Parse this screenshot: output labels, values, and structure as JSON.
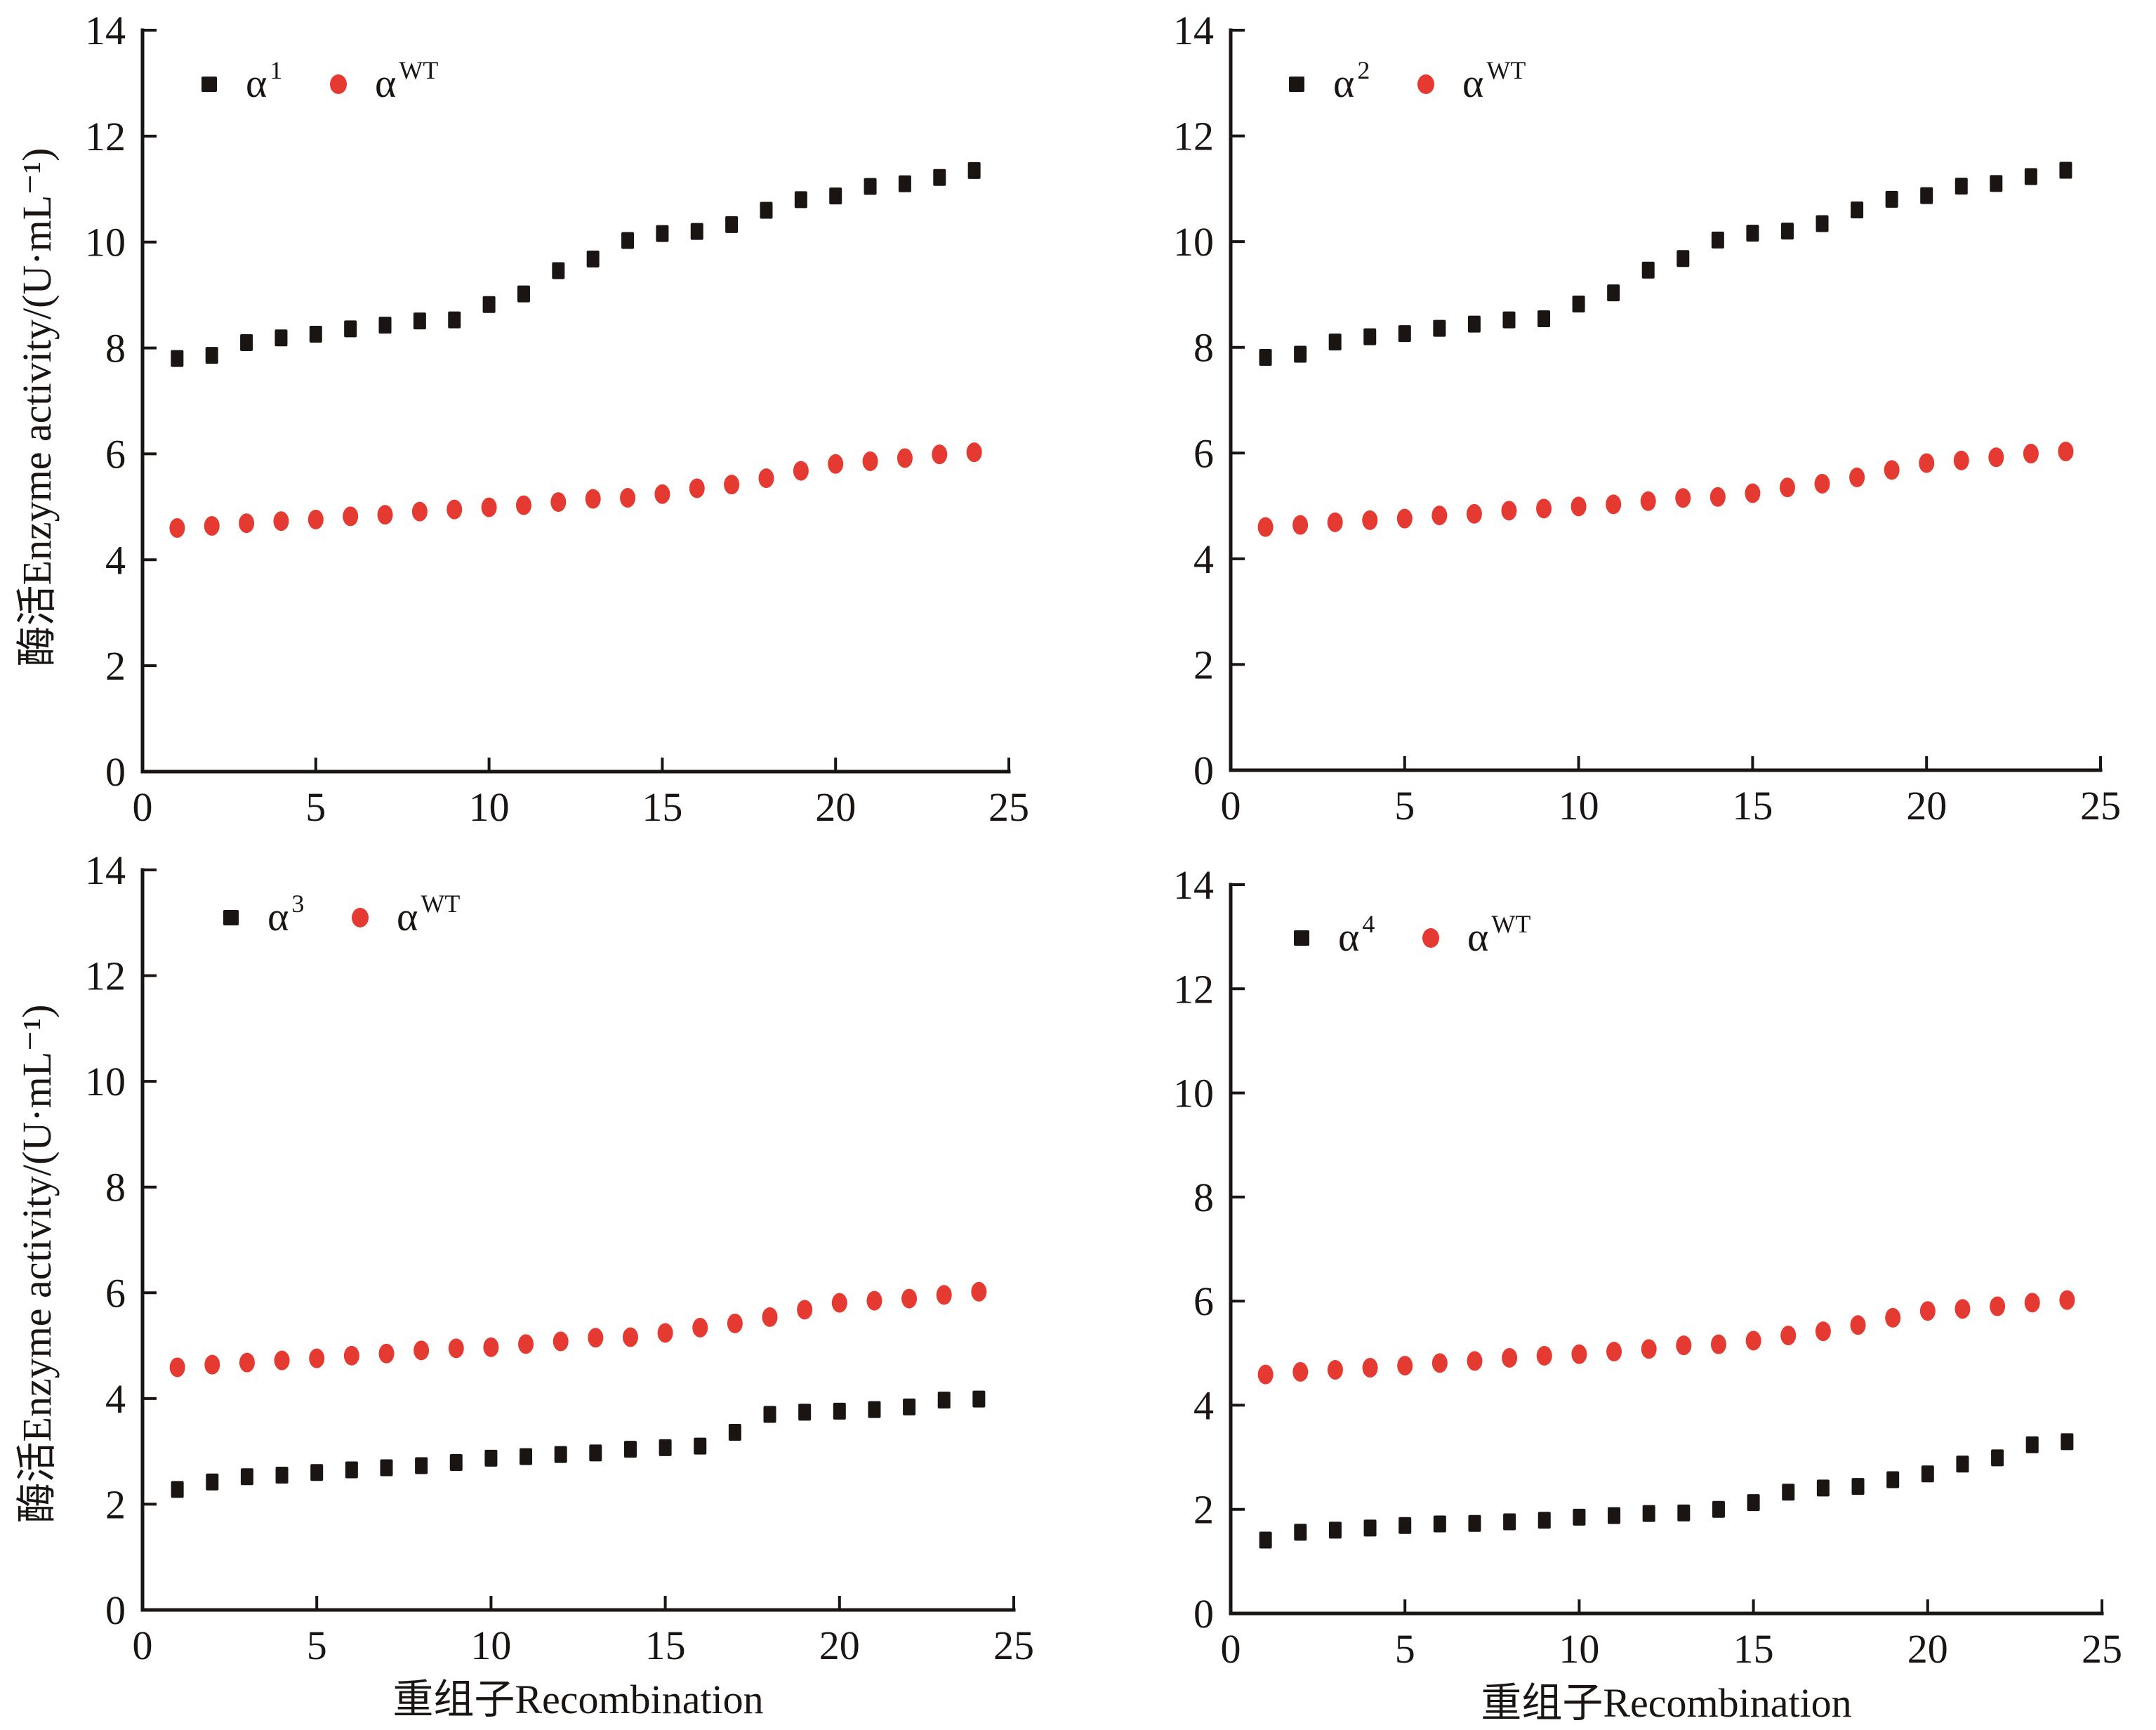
{
  "figure": {
    "colors": {
      "mutant": "#1a1512",
      "wild_type": "#e53a32",
      "axis": "#1a1512"
    }
  },
  "chart_data": [
    {
      "type": "scatter",
      "panel": "top-left",
      "title": "",
      "xlabel": "",
      "ylabel": "酶活Enzyme activity/(U·mL⁻¹)",
      "xlim": [
        0,
        25
      ],
      "ylim": [
        0,
        14
      ],
      "xticks": [
        0,
        5,
        10,
        15,
        20,
        25
      ],
      "yticks": [
        0,
        2,
        4,
        6,
        8,
        10,
        12,
        14
      ],
      "grid": false,
      "legend_position": "top-left",
      "x": [
        1,
        2,
        3,
        4,
        5,
        6,
        7,
        8,
        9,
        10,
        11,
        12,
        13,
        14,
        15,
        16,
        17,
        18,
        19,
        20,
        21,
        22,
        23,
        24
      ],
      "series": [
        {
          "name": "α1",
          "base": "α",
          "sup": "1",
          "marker": "square",
          "color": "#1a1512",
          "values": [
            7.8,
            7.86,
            8.1,
            8.19,
            8.26,
            8.36,
            8.43,
            8.51,
            8.53,
            8.82,
            9.02,
            9.46,
            9.68,
            10.03,
            10.16,
            10.2,
            10.33,
            10.6,
            10.8,
            10.87,
            11.05,
            11.1,
            11.22,
            11.35
          ]
        },
        {
          "name": "αWT",
          "base": "α",
          "sup": "WT",
          "marker": "circle",
          "color": "#e53a32",
          "values": [
            4.6,
            4.64,
            4.69,
            4.73,
            4.76,
            4.82,
            4.85,
            4.91,
            4.95,
            4.99,
            5.03,
            5.09,
            5.15,
            5.17,
            5.24,
            5.35,
            5.42,
            5.54,
            5.68,
            5.81,
            5.86,
            5.92,
            5.99,
            6.03
          ]
        }
      ]
    },
    {
      "type": "scatter",
      "panel": "top-right",
      "title": "",
      "xlabel": "",
      "ylabel": "",
      "xlim": [
        0,
        25
      ],
      "ylim": [
        0,
        14
      ],
      "xticks": [
        0,
        5,
        10,
        15,
        20,
        25
      ],
      "yticks": [
        0,
        2,
        4,
        6,
        8,
        10,
        12,
        14
      ],
      "grid": false,
      "legend_position": "top-left",
      "x": [
        1,
        2,
        3,
        4,
        5,
        6,
        7,
        8,
        9,
        10,
        11,
        12,
        13,
        14,
        15,
        16,
        17,
        18,
        19,
        20,
        21,
        22,
        23,
        24
      ],
      "series": [
        {
          "name": "α2",
          "base": "α",
          "sup": "2",
          "marker": "square",
          "color": "#1a1512",
          "values": [
            7.81,
            7.87,
            8.1,
            8.2,
            8.26,
            8.36,
            8.44,
            8.52,
            8.54,
            8.82,
            9.03,
            9.46,
            9.68,
            10.03,
            10.16,
            10.2,
            10.34,
            10.6,
            10.8,
            10.87,
            11.05,
            11.1,
            11.23,
            11.35
          ]
        },
        {
          "name": "αWT",
          "base": "α",
          "sup": "WT",
          "marker": "circle",
          "color": "#e53a32",
          "values": [
            4.6,
            4.64,
            4.69,
            4.73,
            4.76,
            4.82,
            4.85,
            4.91,
            4.95,
            4.99,
            5.03,
            5.09,
            5.15,
            5.17,
            5.24,
            5.35,
            5.42,
            5.54,
            5.68,
            5.81,
            5.86,
            5.92,
            5.99,
            6.03
          ]
        }
      ]
    },
    {
      "type": "scatter",
      "panel": "bottom-left",
      "title": "",
      "xlabel": "重组子Recombination",
      "ylabel": "酶活Enzyme activity/(U·mL⁻¹)",
      "xlim": [
        0,
        25
      ],
      "ylim": [
        0,
        14
      ],
      "xticks": [
        0,
        5,
        10,
        15,
        20,
        25
      ],
      "yticks": [
        0,
        2,
        4,
        6,
        8,
        10,
        12,
        14
      ],
      "grid": false,
      "legend_position": "top-left",
      "x": [
        1,
        2,
        3,
        4,
        5,
        6,
        7,
        8,
        9,
        10,
        11,
        12,
        13,
        14,
        15,
        16,
        17,
        18,
        19,
        20,
        21,
        22,
        23,
        24
      ],
      "series": [
        {
          "name": "α3",
          "base": "α",
          "sup": "3",
          "marker": "square",
          "color": "#1a1512",
          "values": [
            2.28,
            2.42,
            2.52,
            2.55,
            2.6,
            2.65,
            2.69,
            2.73,
            2.79,
            2.87,
            2.9,
            2.94,
            2.97,
            3.04,
            3.07,
            3.1,
            3.36,
            3.7,
            3.74,
            3.76,
            3.79,
            3.84,
            3.97,
            3.99
          ]
        },
        {
          "name": "αWT",
          "base": "α",
          "sup": "WT",
          "marker": "circle",
          "color": "#e53a32",
          "values": [
            4.59,
            4.64,
            4.68,
            4.72,
            4.76,
            4.81,
            4.85,
            4.91,
            4.95,
            4.97,
            5.03,
            5.08,
            5.15,
            5.16,
            5.24,
            5.34,
            5.42,
            5.54,
            5.68,
            5.81,
            5.85,
            5.89,
            5.96,
            6.02
          ]
        }
      ]
    },
    {
      "type": "scatter",
      "panel": "bottom-right",
      "title": "",
      "xlabel": "重组子Recombination",
      "ylabel": "",
      "xlim": [
        0,
        25
      ],
      "ylim": [
        0,
        14
      ],
      "xticks": [
        0,
        5,
        10,
        15,
        20,
        25
      ],
      "yticks": [
        0,
        2,
        4,
        6,
        8,
        10,
        12,
        14
      ],
      "grid": false,
      "legend_position": "top-left",
      "x": [
        1,
        2,
        3,
        4,
        5,
        6,
        7,
        8,
        9,
        10,
        11,
        12,
        13,
        14,
        15,
        16,
        17,
        18,
        19,
        20,
        21,
        22,
        23,
        24
      ],
      "series": [
        {
          "name": "α4",
          "base": "α",
          "sup": "4",
          "marker": "square",
          "color": "#1a1512",
          "values": [
            1.41,
            1.56,
            1.6,
            1.64,
            1.69,
            1.72,
            1.73,
            1.76,
            1.79,
            1.85,
            1.88,
            1.92,
            1.93,
            2.0,
            2.13,
            2.33,
            2.41,
            2.44,
            2.57,
            2.68,
            2.87,
            2.99,
            3.24,
            3.3
          ]
        },
        {
          "name": "αWT",
          "base": "α",
          "sup": "WT",
          "marker": "circle",
          "color": "#e53a32",
          "values": [
            4.59,
            4.64,
            4.68,
            4.72,
            4.76,
            4.81,
            4.85,
            4.91,
            4.95,
            4.98,
            5.03,
            5.08,
            5.15,
            5.17,
            5.24,
            5.34,
            5.42,
            5.54,
            5.68,
            5.81,
            5.85,
            5.9,
            5.97,
            6.02
          ]
        }
      ]
    }
  ]
}
